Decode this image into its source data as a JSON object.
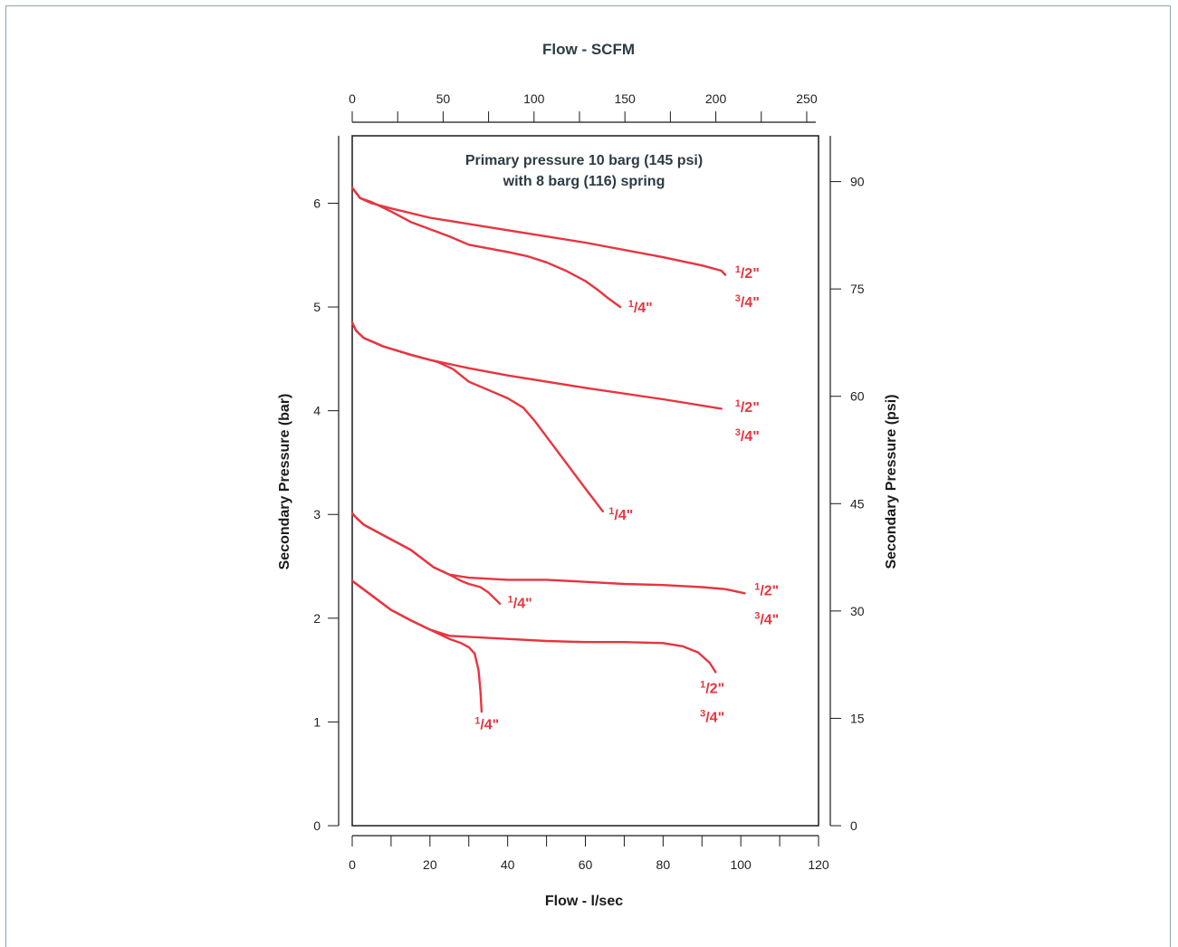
{
  "chart_data": {
    "type": "line",
    "title": "Primary pressure 10 barg (145 psi)",
    "subtitle": "with 8 barg (116) spring",
    "xlabel": "Flow - l/sec",
    "x2label": "Flow - SCFM",
    "ylabel": "Secondary Pressure (bar)",
    "y2label": "Secondary Pressure (psi)",
    "xlim": [
      0,
      120
    ],
    "x2lim": [
      0,
      255
    ],
    "ylim": [
      0,
      6.65
    ],
    "y2lim": [
      0,
      96.4
    ],
    "x_ticks": [
      0,
      20,
      40,
      60,
      80,
      100,
      120
    ],
    "x_ticks_minor": [
      10,
      30,
      50,
      70,
      90,
      110
    ],
    "x2_ticks": [
      0,
      50,
      100,
      150,
      200,
      250
    ],
    "x2_ticks_minor": [
      25,
      75,
      125,
      175,
      225
    ],
    "y_ticks": [
      0,
      1,
      2,
      3,
      4,
      5,
      6
    ],
    "y2_ticks": [
      0,
      15,
      30,
      45,
      60,
      75,
      90
    ],
    "color": "#e8343f",
    "series": [
      {
        "name": "1/2\" 3/4\"",
        "points": [
          [
            0,
            6.15
          ],
          [
            1,
            6.1
          ],
          [
            2,
            6.05
          ],
          [
            5,
            6.0
          ],
          [
            10,
            5.95
          ],
          [
            20,
            5.86
          ],
          [
            40,
            5.74
          ],
          [
            60,
            5.62
          ],
          [
            80,
            5.48
          ],
          [
            90,
            5.4
          ],
          [
            95,
            5.35
          ],
          [
            96,
            5.31
          ]
        ]
      },
      {
        "name": "1/4\"",
        "points": [
          [
            0,
            6.15
          ],
          [
            1,
            6.1
          ],
          [
            2,
            6.05
          ],
          [
            5,
            6.01
          ],
          [
            10,
            5.92
          ],
          [
            15,
            5.82
          ],
          [
            20,
            5.75
          ],
          [
            25,
            5.68
          ],
          [
            30,
            5.6
          ],
          [
            40,
            5.53
          ],
          [
            45,
            5.49
          ],
          [
            50,
            5.43
          ],
          [
            55,
            5.35
          ],
          [
            60,
            5.25
          ],
          [
            63,
            5.17
          ],
          [
            66,
            5.08
          ],
          [
            69,
            5.0
          ]
        ]
      },
      {
        "name": "1/2\" 3/4\"",
        "points": [
          [
            0,
            4.85
          ],
          [
            1,
            4.77
          ],
          [
            3,
            4.7
          ],
          [
            8,
            4.62
          ],
          [
            15,
            4.54
          ],
          [
            20,
            4.49
          ],
          [
            30,
            4.41
          ],
          [
            40,
            4.34
          ],
          [
            60,
            4.22
          ],
          [
            80,
            4.11
          ],
          [
            95,
            4.02
          ]
        ]
      },
      {
        "name": "1/4\"",
        "points": [
          [
            0,
            4.85
          ],
          [
            1,
            4.77
          ],
          [
            3,
            4.7
          ],
          [
            8,
            4.62
          ],
          [
            15,
            4.54
          ],
          [
            22,
            4.47
          ],
          [
            26,
            4.4
          ],
          [
            28,
            4.34
          ],
          [
            30,
            4.28
          ],
          [
            35,
            4.2
          ],
          [
            40,
            4.12
          ],
          [
            44,
            4.03
          ],
          [
            47,
            3.9
          ],
          [
            50,
            3.75
          ],
          [
            55,
            3.5
          ],
          [
            60,
            3.25
          ],
          [
            64.5,
            3.03
          ]
        ]
      },
      {
        "name": "1/2\" 3/4\"",
        "points": [
          [
            0,
            3.01
          ],
          [
            1,
            2.97
          ],
          [
            3,
            2.9
          ],
          [
            8,
            2.8
          ],
          [
            15,
            2.66
          ],
          [
            21,
            2.49
          ],
          [
            25,
            2.42
          ],
          [
            30,
            2.39
          ],
          [
            40,
            2.37
          ],
          [
            50,
            2.37
          ],
          [
            60,
            2.35
          ],
          [
            70,
            2.33
          ],
          [
            80,
            2.32
          ],
          [
            90,
            2.3
          ],
          [
            96,
            2.28
          ],
          [
            101,
            2.24
          ]
        ]
      },
      {
        "name": "1/4\"",
        "points": [
          [
            0,
            3.01
          ],
          [
            1,
            2.97
          ],
          [
            3,
            2.9
          ],
          [
            8,
            2.8
          ],
          [
            15,
            2.66
          ],
          [
            21,
            2.49
          ],
          [
            25,
            2.42
          ],
          [
            28,
            2.36
          ],
          [
            30,
            2.33
          ],
          [
            33,
            2.3
          ],
          [
            35,
            2.25
          ],
          [
            38,
            2.14
          ]
        ]
      },
      {
        "name": "1/2\" 3/4\"",
        "points": [
          [
            0,
            2.36
          ],
          [
            5,
            2.22
          ],
          [
            10,
            2.08
          ],
          [
            15,
            1.98
          ],
          [
            20,
            1.89
          ],
          [
            25,
            1.83
          ],
          [
            35,
            1.81
          ],
          [
            50,
            1.78
          ],
          [
            60,
            1.77
          ],
          [
            70,
            1.77
          ],
          [
            80,
            1.76
          ],
          [
            85,
            1.73
          ],
          [
            89,
            1.67
          ],
          [
            92,
            1.57
          ],
          [
            93.5,
            1.48
          ]
        ]
      },
      {
        "name": "1/4\"",
        "points": [
          [
            0,
            2.36
          ],
          [
            5,
            2.22
          ],
          [
            10,
            2.08
          ],
          [
            15,
            1.98
          ],
          [
            20,
            1.89
          ],
          [
            25,
            1.8
          ],
          [
            28,
            1.76
          ],
          [
            30,
            1.72
          ],
          [
            31.5,
            1.66
          ],
          [
            32.5,
            1.5
          ],
          [
            33,
            1.3
          ],
          [
            33.3,
            1.1
          ]
        ]
      }
    ],
    "series_labels": [
      {
        "text": "1/2\"",
        "x": 98.5,
        "y": 5.28
      },
      {
        "text": "3/4\"",
        "x": 98.5,
        "y": 5.0
      },
      {
        "text": "1/4\"",
        "x": 71,
        "y": 4.95
      },
      {
        "text": "1/2\"",
        "x": 98.5,
        "y": 3.99
      },
      {
        "text": "3/4\"",
        "x": 98.5,
        "y": 3.71
      },
      {
        "text": "1/4\"",
        "x": 66,
        "y": 2.95
      },
      {
        "text": "1/2\"",
        "x": 103.5,
        "y": 2.22
      },
      {
        "text": "3/4\"",
        "x": 103.5,
        "y": 1.94
      },
      {
        "text": "1/4\"",
        "x": 40,
        "y": 2.1
      },
      {
        "text": "1/2\"",
        "x": 89.5,
        "y": 1.28
      },
      {
        "text": "3/4\"",
        "x": 89.5,
        "y": 1.0
      },
      {
        "text": "1/4\"",
        "x": 31.5,
        "y": 0.93
      }
    ]
  }
}
